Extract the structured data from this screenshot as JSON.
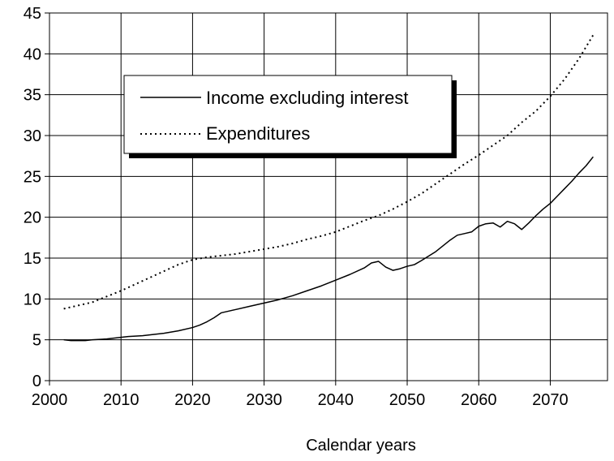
{
  "chart_data": {
    "type": "line",
    "title": "",
    "xlabel": "Calendar years",
    "ylabel": "",
    "xlim": [
      2000,
      2078
    ],
    "ylim": [
      0,
      45
    ],
    "x_ticks": [
      2000,
      2010,
      2020,
      2030,
      2040,
      2050,
      2060,
      2070
    ],
    "y_ticks": [
      0,
      5,
      10,
      15,
      20,
      25,
      30,
      35,
      40,
      45
    ],
    "grid": true,
    "legend": "top-left",
    "series": [
      {
        "name": "Income excluding interest",
        "style": "solid",
        "color": "#000000",
        "x": [
          2002,
          2003,
          2005,
          2006,
          2008,
          2009,
          2010,
          2011,
          2013,
          2014,
          2015,
          2016,
          2018,
          2020,
          2021,
          2022,
          2023,
          2024,
          2025,
          2026,
          2028,
          2030,
          2032,
          2034,
          2036,
          2038,
          2040,
          2042,
          2044,
          2045,
          2046,
          2047,
          2048,
          2049,
          2050,
          2051,
          2052,
          2054,
          2056,
          2057,
          2058,
          2059,
          2060,
          2061,
          2062,
          2063,
          2064,
          2065,
          2066,
          2067,
          2068,
          2069,
          2070,
          2071,
          2072,
          2073,
          2074,
          2075,
          2076
        ],
        "y": [
          5.0,
          4.9,
          4.9,
          5.0,
          5.1,
          5.2,
          5.3,
          5.4,
          5.5,
          5.6,
          5.7,
          5.8,
          6.1,
          6.5,
          6.8,
          7.2,
          7.7,
          8.3,
          8.5,
          8.7,
          9.1,
          9.5,
          9.9,
          10.4,
          11.0,
          11.6,
          12.3,
          13.0,
          13.8,
          14.4,
          14.6,
          13.9,
          13.5,
          13.7,
          14.0,
          14.2,
          14.7,
          15.8,
          17.2,
          17.8,
          18.0,
          18.2,
          18.9,
          19.2,
          19.3,
          18.8,
          19.5,
          19.2,
          18.5,
          19.3,
          20.2,
          21.0,
          21.7,
          22.6,
          23.5,
          24.4,
          25.4,
          26.3,
          27.4
        ]
      },
      {
        "name": "Expenditures",
        "style": "dotted",
        "color": "#000000",
        "x": [
          2002,
          2004,
          2006,
          2008,
          2010,
          2012,
          2014,
          2016,
          2018,
          2020,
          2022,
          2024,
          2026,
          2028,
          2030,
          2032,
          2034,
          2036,
          2038,
          2040,
          2042,
          2044,
          2046,
          2048,
          2050,
          2052,
          2054,
          2056,
          2058,
          2060,
          2062,
          2064,
          2066,
          2068,
          2070,
          2072,
          2074,
          2076
        ],
        "y": [
          8.8,
          9.2,
          9.6,
          10.3,
          11.0,
          11.8,
          12.6,
          13.4,
          14.2,
          14.8,
          15.1,
          15.3,
          15.5,
          15.8,
          16.1,
          16.4,
          16.8,
          17.3,
          17.7,
          18.2,
          18.9,
          19.6,
          20.2,
          21.0,
          21.9,
          22.9,
          24.1,
          25.3,
          26.5,
          27.6,
          28.8,
          30.0,
          31.6,
          33.0,
          34.8,
          36.9,
          39.4,
          42.3
        ]
      }
    ]
  }
}
